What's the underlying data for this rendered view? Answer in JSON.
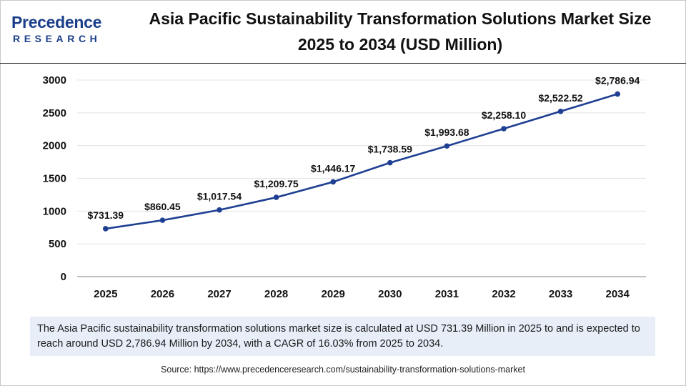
{
  "logo": {
    "top": "Precedence",
    "bottom": "RESEARCH"
  },
  "title": "Asia Pacific Sustainability Transformation Solutions Market Size 2025 to 2034 (USD Million)",
  "summary": "The Asia Pacific sustainability transformation solutions market size is calculated at USD 731.39 Million in 2025 to and is expected to reach around USD 2,786.94 Million by 2034, with a CAGR of 16.03% from 2025 to 2034.",
  "source": "Source: https://www.precedenceresearch.com/sustainability-transformation-solutions-market",
  "colors": {
    "line": "#1f3f93",
    "brand": "#1b3f8b",
    "summary_bg": "#e7eef8",
    "grid": "#e3e3e3"
  },
  "chart_data": {
    "type": "line",
    "title": "Asia Pacific Sustainability Transformation Solutions Market Size 2025 to 2034 (USD Million)",
    "xlabel": "",
    "ylabel": "",
    "grid": true,
    "legend": "none",
    "categories": [
      "2025",
      "2026",
      "2027",
      "2028",
      "2029",
      "2030",
      "2031",
      "2032",
      "2033",
      "2034"
    ],
    "series": [
      {
        "values": [
          731.39,
          860.45,
          1017.54,
          1209.75,
          1446.17,
          1738.59,
          1993.68,
          2258.1,
          2522.52,
          2786.94
        ],
        "labels": [
          "$731.39",
          "$860.45",
          "$1,017.54",
          "$1,209.75",
          "$1,446.17",
          "$1,738.59",
          "$1,993.68",
          "$2,258.10",
          "$2,522.52",
          "$2,786.94"
        ]
      }
    ],
    "ylim": [
      0,
      3000
    ],
    "yticks": [
      0,
      500,
      1000,
      1500,
      2000,
      2500,
      3000
    ]
  }
}
